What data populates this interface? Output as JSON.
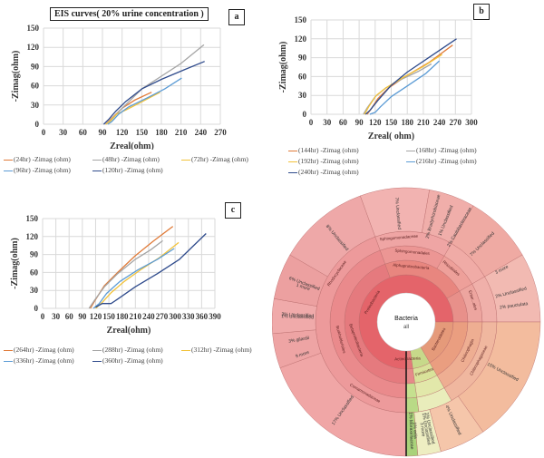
{
  "figure_title": "EIS curves( 20% urine concentration )",
  "chart_data": [
    {
      "id": "a",
      "panel_label": "a",
      "type": "line",
      "title": "EIS curves( 20% urine concentration )",
      "xlabel": "Zreal(ohm)",
      "ylabel": "-Zimag(ohm)",
      "xlim": [
        0,
        270
      ],
      "ylim": [
        0,
        150
      ],
      "xticks": [
        0,
        30,
        60,
        90,
        120,
        150,
        180,
        210,
        240,
        270
      ],
      "yticks": [
        0,
        30,
        60,
        90,
        120,
        150
      ],
      "grid": true,
      "legend_position": "bottom",
      "series": [
        {
          "name": "(24hr) -Zimag (ohm)",
          "color": "#e07b39",
          "points": [
            [
              95,
              0
            ],
            [
              100,
              5
            ],
            [
              110,
              15
            ],
            [
              120,
              25
            ],
            [
              140,
              38
            ],
            [
              165,
              50
            ]
          ]
        },
        {
          "name": "(48hr) -Zimag (ohm)",
          "color": "#a5a5a5",
          "points": [
            [
              95,
              0
            ],
            [
              102,
              6
            ],
            [
              115,
              20
            ],
            [
              130,
              35
            ],
            [
              150,
              55
            ],
            [
              180,
              75
            ],
            [
              210,
              95
            ],
            [
              245,
              124
            ]
          ]
        },
        {
          "name": "(72hr) -Zimag (ohm)",
          "color": "#f2c23a",
          "points": [
            [
              95,
              0
            ],
            [
              102,
              5
            ],
            [
              112,
              16
            ],
            [
              125,
              22
            ],
            [
              150,
              35
            ],
            [
              178,
              50
            ]
          ]
        },
        {
          "name": "(96hr) -Zimag (ohm)",
          "color": "#5b9bd5",
          "points": [
            [
              98,
              0
            ],
            [
              104,
              4
            ],
            [
              115,
              16
            ],
            [
              130,
              27
            ],
            [
              160,
              42
            ],
            [
              185,
              55
            ],
            [
              211,
              72
            ]
          ]
        },
        {
          "name": "(120hr) -Zimag (ohm)",
          "color": "#2f4b8c",
          "points": [
            [
              92,
              0
            ],
            [
              100,
              8
            ],
            [
              110,
              20
            ],
            [
              125,
              35
            ],
            [
              150,
              55
            ],
            [
              180,
              70
            ],
            [
              215,
              85
            ],
            [
              246,
              98
            ]
          ]
        }
      ]
    },
    {
      "id": "b",
      "panel_label": "b",
      "type": "line",
      "title": "",
      "xlabel": "Zreal( ohm)",
      "ylabel": "-Zimag(ohm)",
      "xlim": [
        0,
        300
      ],
      "ylim": [
        0,
        150
      ],
      "xticks": [
        0,
        30,
        60,
        90,
        120,
        150,
        180,
        210,
        240,
        270,
        300
      ],
      "yticks": [
        0,
        30,
        60,
        90,
        120,
        150
      ],
      "grid": true,
      "legend_position": "bottom",
      "series": [
        {
          "name": "(144hr) -Zimag (ohm)",
          "color": "#e07b39",
          "points": [
            [
              105,
              0
            ],
            [
              112,
              8
            ],
            [
              125,
              25
            ],
            [
              145,
              42
            ],
            [
              180,
              62
            ],
            [
              220,
              82
            ],
            [
              265,
              110
            ]
          ]
        },
        {
          "name": "(168hr) -Zimag (ohm)",
          "color": "#a5a5a5",
          "points": [
            [
              98,
              0
            ],
            [
              105,
              10
            ],
            [
              120,
              28
            ],
            [
              140,
              42
            ],
            [
              170,
              56
            ],
            [
              200,
              68
            ],
            [
              225,
              80
            ]
          ]
        },
        {
          "name": "(192hr) -Zimag (ohm)",
          "color": "#f2c23a",
          "points": [
            [
              100,
              0
            ],
            [
              108,
              12
            ],
            [
              122,
              30
            ],
            [
              140,
              42
            ],
            [
              175,
              60
            ],
            [
              210,
              76
            ],
            [
              245,
              95
            ]
          ]
        },
        {
          "name": "(216hr) -Zimag (ohm)",
          "color": "#5b9bd5",
          "points": [
            [
              110,
              0
            ],
            [
              120,
              3
            ],
            [
              130,
              12
            ],
            [
              150,
              28
            ],
            [
              180,
              45
            ],
            [
              215,
              65
            ],
            [
              240,
              85
            ]
          ]
        },
        {
          "name": "(240hr) -Zimag (ohm)",
          "color": "#2f4b8c",
          "points": [
            [
              102,
              0
            ],
            [
              110,
              6
            ],
            [
              125,
              22
            ],
            [
              150,
              46
            ],
            [
              180,
              67
            ],
            [
              220,
              90
            ],
            [
              272,
              120
            ]
          ]
        }
      ]
    },
    {
      "id": "c",
      "panel_label": "c",
      "type": "line",
      "title": "",
      "xlabel": "Zreal(ohm)",
      "ylabel": "-Zimag(ohm)",
      "xlim": [
        0,
        390
      ],
      "ylim": [
        0,
        150
      ],
      "xticks": [
        0,
        30,
        60,
        90,
        120,
        150,
        180,
        210,
        240,
        270,
        300,
        330,
        360,
        390
      ],
      "yticks": [
        0,
        30,
        60,
        90,
        120,
        150
      ],
      "grid": true,
      "legend_position": "bottom",
      "series": [
        {
          "name": "(264hr) -Zimag (ohm)",
          "color": "#e07b39",
          "points": [
            [
              108,
              0
            ],
            [
              120,
              15
            ],
            [
              140,
              38
            ],
            [
              170,
              60
            ],
            [
              210,
              88
            ],
            [
              250,
              112
            ],
            [
              295,
              137
            ]
          ]
        },
        {
          "name": "(288hr) -Zimag (ohm)",
          "color": "#a5a5a5",
          "points": [
            [
              105,
              0
            ],
            [
              118,
              14
            ],
            [
              140,
              36
            ],
            [
              170,
              58
            ],
            [
              210,
              82
            ],
            [
              245,
              98
            ],
            [
              272,
              113
            ]
          ]
        },
        {
          "name": "(312hr) -Zimag (ohm)",
          "color": "#f2c23a",
          "points": [
            [
              120,
              0
            ],
            [
              135,
              10
            ],
            [
              155,
              26
            ],
            [
              185,
              45
            ],
            [
              225,
              66
            ],
            [
              265,
              85
            ],
            [
              308,
              110
            ]
          ]
        },
        {
          "name": "(336hr) -Zimag (ohm)",
          "color": "#5b9bd5",
          "points": [
            [
              115,
              0
            ],
            [
              128,
              8
            ],
            [
              145,
              25
            ],
            [
              175,
              45
            ],
            [
              215,
              64
            ],
            [
              260,
              82
            ],
            [
              298,
              100
            ]
          ]
        },
        {
          "name": "(360hr) -Zimag (ohm)",
          "color": "#2f4b8c",
          "points": [
            [
              120,
              2
            ],
            [
              135,
              8
            ],
            [
              155,
              8
            ],
            [
              175,
              18
            ],
            [
              210,
              36
            ],
            [
              260,
              58
            ],
            [
              310,
              82
            ],
            [
              370,
              125
            ]
          ]
        }
      ]
    }
  ],
  "krona": {
    "center_label": "Bacteria",
    "center_sublabel": "all",
    "labels": [
      {
        "text": "Unclassified",
        "pct": "7%"
      },
      {
        "text": "Unclassified",
        "pct": "8%"
      },
      {
        "text": "Unclassified",
        "pct": "6%"
      },
      {
        "text": "Unclassified",
        "pct": "1%"
      },
      {
        "text": "Unclassified",
        "pct": "3%"
      },
      {
        "text": "gilardii",
        "pct": "3%"
      },
      {
        "text": "9 more",
        "pct": ""
      },
      {
        "text": "1 more",
        "pct": ""
      },
      {
        "text": "Unclassified",
        "pct": "17%"
      },
      {
        "text": "Unclassified",
        "pct": "15%"
      },
      {
        "text": "Unclassified",
        "pct": "7%"
      },
      {
        "text": "Unclassified",
        "pct": "2%"
      },
      {
        "text": "3 more",
        "pct": ""
      },
      {
        "text": "pauciulata",
        "pct": "2%"
      },
      {
        "text": "Unclassified",
        "pct": "4%"
      },
      {
        "text": "Unclassified",
        "pct": "1%"
      },
      {
        "text": "3 more",
        "pct": ""
      },
      {
        "text": "Moraxellaceae",
        "pct": "1%"
      },
      {
        "text": "edia",
        "pct": "1%"
      },
      {
        "text": "Unclassified",
        "pct": "1%"
      },
      {
        "text": "Caulobacteraceae",
        "pct": "2%"
      },
      {
        "text": "Unclassified",
        "pct": "1%"
      },
      {
        "text": "Bradyrhizobiaceae",
        "pct": "2%"
      }
    ],
    "taxa": {
      "phyla": [
        "Proteobacteria",
        "Bacteroidetes",
        "Actinobacteria",
        "Firmicutes"
      ],
      "classes": [
        "Alphaproteobacteria",
        "Betaproteobacteria",
        "Gammaproteobacteria",
        "Chitinophagia",
        "Bacilli",
        "Actinobacteria"
      ],
      "orders": [
        "Sphingomonadales",
        "Rhizobiales",
        "Burkholderiales",
        "Chitinophagales",
        "Enter...ales",
        "Pseudomonadales"
      ],
      "families": [
        "Sphingomonadaceae",
        "Comamonadaceae",
        "Rhodocyclaceae",
        "Oxalobacteraceae",
        "Chitinophagaceae",
        "Sph...nas"
      ],
      "small": [
        "Nov...sum",
        "Ch...ae",
        "Cl...e",
        "Lactb...bales",
        "Str...cca",
        "B...A...Ox...ae"
      ]
    }
  }
}
